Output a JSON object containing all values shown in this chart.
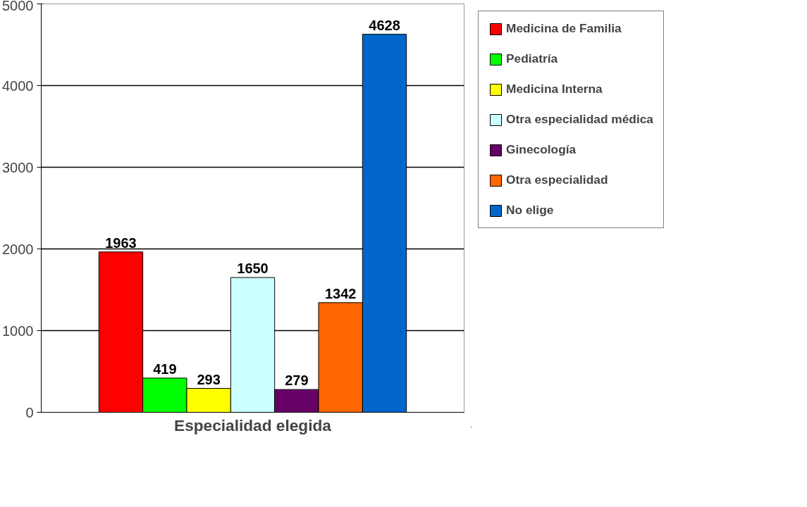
{
  "chart_data": {
    "type": "bar",
    "xlabel": "Especialidad elegida",
    "categories": [
      null
    ],
    "series": [
      {
        "name": "Medicina de Familia",
        "color": "#ff0000",
        "values": [
          1963
        ]
      },
      {
        "name": "Pediatría",
        "color": "#00ff00",
        "values": [
          419
        ]
      },
      {
        "name": "Medicina Interna",
        "color": "#ffff00",
        "values": [
          293
        ]
      },
      {
        "name": "Otra especialidad médica",
        "color": "#ccffff",
        "values": [
          1650
        ]
      },
      {
        "name": "Ginecología",
        "color": "#660066",
        "values": [
          279
        ]
      },
      {
        "name": "Otra especialidad",
        "color": "#ff6600",
        "values": [
          1342
        ]
      },
      {
        "name": "No elige",
        "color": "#0066cc",
        "values": [
          4628
        ]
      }
    ],
    "ylim": [
      0,
      5000
    ],
    "yticks": [
      0,
      1000,
      2000,
      3000,
      4000,
      5000
    ],
    "grid": "y",
    "legend": "right",
    "data_labels": true
  }
}
